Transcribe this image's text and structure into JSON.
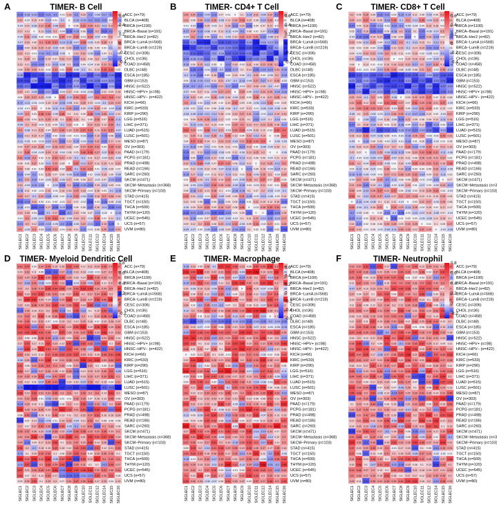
{
  "chart_data": [
    {
      "type": "heatmap",
      "letter": "A",
      "title": "TIMER- B Cell",
      "legend_ticks": [
        "0.6",
        "0.4",
        "0.2",
        "0",
        "-0.2",
        "-0.4"
      ],
      "vmin": -0.5,
      "vmax": 0.7,
      "dominant": "mixed",
      "blue_rows": [
        11,
        12,
        13
      ]
    },
    {
      "type": "heatmap",
      "letter": "B",
      "title": "TIMER- CD4+ T Cell",
      "legend_ticks": [
        "0.6",
        "0.4",
        "0.2",
        "0",
        "-0.2",
        "-0.4"
      ],
      "vmin": -0.5,
      "vmax": 0.7,
      "dominant": "mixed",
      "blue_rows": [
        5,
        6,
        7,
        8
      ]
    },
    {
      "type": "heatmap",
      "letter": "C",
      "title": "TIMER- CD8+ T Cell",
      "legend_ticks": [
        "0.6",
        "0.4",
        "0.2",
        "0",
        "-0.2",
        "-0.4"
      ],
      "vmin": -0.5,
      "vmax": 0.7,
      "dominant": "mixed",
      "blue_rows": [
        11,
        12,
        13,
        14,
        21
      ]
    },
    {
      "type": "heatmap",
      "letter": "D",
      "title": "TIMER- Myeloid Dendritic Cell",
      "legend_ticks": [
        "0.8",
        "0.6",
        "0.4",
        "0.2",
        "0",
        "-0.2"
      ],
      "vmin": -0.3,
      "vmax": 0.8,
      "dominant": "red",
      "blue_rows": [
        22
      ]
    },
    {
      "type": "heatmap",
      "letter": "E",
      "title": "TIMER- Macrophage",
      "legend_ticks": [
        "0.6",
        "0.4",
        "0.2",
        "0",
        "-0.2",
        "-0.4",
        "-0.6"
      ],
      "vmin": -0.6,
      "vmax": 0.7,
      "dominant": "red",
      "blue_rows": [
        10
      ]
    },
    {
      "type": "heatmap",
      "letter": "F",
      "title": "TIMER- Neutrophil",
      "legend_ticks": [
        "0.8",
        "0.6",
        "0.4",
        "0.2",
        "0",
        "-0.2"
      ],
      "vmin": -0.3,
      "vmax": 0.8,
      "dominant": "red",
      "blue_rows": []
    }
  ],
  "columns": [
    "SIGLEC1",
    "SIGLEC2",
    "SIGLEC3",
    "SIGLEC4",
    "SIGLEC5",
    "SIGLEC6",
    "SIGLEC7",
    "SIGLEC8",
    "SIGLEC9",
    "SIGLEC10",
    "SIGLEC11",
    "SIGLEC12",
    "SIGLEC14",
    "SIGLEC15",
    "SIGLEC16"
  ],
  "rows": [
    "ACC (n=79)",
    "BLCA (n=408)",
    "BRCA (n=1100)",
    "BRCA−Basal (n=191)",
    "BRCA−Her2 (n=82)",
    "BRCA−LumA (n=568)",
    "BRCA−LumB (n=219)",
    "CESC (n=306)",
    "CHOL (n=36)",
    "COAD (n=458)",
    "DLBC (n=48)",
    "ESCA (n=185)",
    "GBM (n=153)",
    "HNSC (n=522)",
    "HNSC−HPV+ (n=98)",
    "HNSC−HPV− (n=422)",
    "KICH (n=66)",
    "KIRC (n=533)",
    "KIRP (n=290)",
    "LGG (n=516)",
    "LIHC (n=371)",
    "LUAD (n=515)",
    "LUSC (n=501)",
    "MESO (n=87)",
    "OV (n=303)",
    "PAAD (n=179)",
    "PCPG (n=181)",
    "PRAD (n=498)",
    "READ (n=166)",
    "SARC (n=260)",
    "SKCM (n=471)",
    "SKCM−Metastasis (n=368)",
    "SKCM−Primary (n=103)",
    "STAD (n=415)",
    "TGCT (n=150)",
    "THCA (n=509)",
    "THYM (n=120)",
    "UCEC (n=545)",
    "UCS (n=57)",
    "UVM (n=80)"
  ]
}
